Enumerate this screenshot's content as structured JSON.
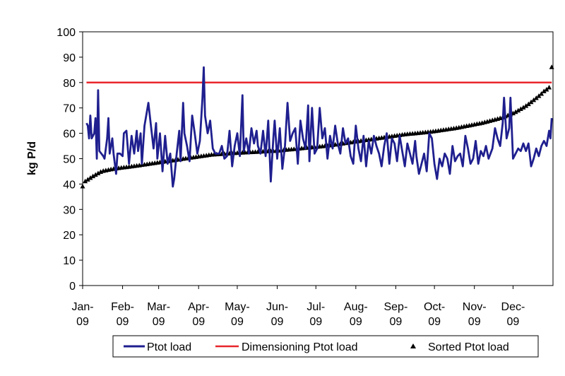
{
  "chart_data": {
    "type": "line",
    "title": "",
    "xlabel": "",
    "ylabel": "kg P/d",
    "ylim": [
      0,
      100
    ],
    "yticks": [
      0,
      10,
      20,
      30,
      40,
      50,
      60,
      70,
      80,
      90,
      100
    ],
    "x_days": [
      0,
      365
    ],
    "month_ticks": [
      {
        "day": 0,
        "line1": "Jan-",
        "line2": "09"
      },
      {
        "day": 31,
        "line1": "Feb-",
        "line2": "09"
      },
      {
        "day": 59,
        "line1": "Mar-",
        "line2": "09"
      },
      {
        "day": 90,
        "line1": "Apr-",
        "line2": "09"
      },
      {
        "day": 120,
        "line1": "May-",
        "line2": "09"
      },
      {
        "day": 151,
        "line1": "Jun-",
        "line2": "09"
      },
      {
        "day": 181,
        "line1": "Jul-",
        "line2": "09"
      },
      {
        "day": 212,
        "line1": "Aug-",
        "line2": "09"
      },
      {
        "day": 243,
        "line1": "Sep-",
        "line2": "09"
      },
      {
        "day": 273,
        "line1": "Oct-",
        "line2": "09"
      },
      {
        "day": 304,
        "line1": "Nov-",
        "line2": "09"
      },
      {
        "day": 334,
        "line1": "Dec-",
        "line2": "09"
      }
    ],
    "series": [
      {
        "name": "Ptot load",
        "kind": "line",
        "color": "#1f1f8f",
        "anchors": [
          [
            3,
            64
          ],
          [
            4,
            63
          ],
          [
            5,
            58
          ],
          [
            6,
            67
          ],
          [
            7,
            58
          ],
          [
            9,
            60
          ],
          [
            10,
            66
          ],
          [
            11,
            50
          ],
          [
            12,
            77
          ],
          [
            13,
            53
          ],
          [
            16,
            51
          ],
          [
            17,
            50
          ],
          [
            19,
            58
          ],
          [
            20,
            66
          ],
          [
            21,
            52
          ],
          [
            23,
            58
          ],
          [
            24,
            52
          ],
          [
            26,
            44
          ],
          [
            27,
            52
          ],
          [
            29,
            52
          ],
          [
            31,
            51
          ],
          [
            32,
            60
          ],
          [
            34,
            61
          ],
          [
            36,
            48
          ],
          [
            38,
            59
          ],
          [
            40,
            52
          ],
          [
            42,
            61
          ],
          [
            43,
            53
          ],
          [
            45,
            60
          ],
          [
            46,
            48
          ],
          [
            48,
            63
          ],
          [
            51,
            72
          ],
          [
            53,
            63
          ],
          [
            55,
            54
          ],
          [
            57,
            64
          ],
          [
            58,
            50
          ],
          [
            60,
            60
          ],
          [
            62,
            45
          ],
          [
            64,
            59
          ],
          [
            66,
            48
          ],
          [
            68,
            52
          ],
          [
            70,
            39
          ],
          [
            71,
            42
          ],
          [
            73,
            52
          ],
          [
            75,
            61
          ],
          [
            76,
            49
          ],
          [
            78,
            72
          ],
          [
            79,
            60
          ],
          [
            81,
            55
          ],
          [
            83,
            49
          ],
          [
            85,
            67
          ],
          [
            87,
            60
          ],
          [
            89,
            52
          ],
          [
            91,
            57
          ],
          [
            93,
            74
          ],
          [
            94,
            86
          ],
          [
            95,
            67
          ],
          [
            97,
            60
          ],
          [
            99,
            65
          ],
          [
            101,
            54
          ],
          [
            103,
            52
          ],
          [
            106,
            52
          ],
          [
            108,
            55
          ],
          [
            110,
            50
          ],
          [
            112,
            51
          ],
          [
            114,
            61
          ],
          [
            116,
            47
          ],
          [
            118,
            55
          ],
          [
            120,
            60
          ],
          [
            122,
            51
          ],
          [
            124,
            75
          ],
          [
            125,
            53
          ],
          [
            127,
            58
          ],
          [
            129,
            52
          ],
          [
            131,
            62
          ],
          [
            133,
            56
          ],
          [
            135,
            61
          ],
          [
            136,
            55
          ],
          [
            138,
            52
          ],
          [
            140,
            61
          ],
          [
            142,
            51
          ],
          [
            144,
            65
          ],
          [
            146,
            41
          ],
          [
            148,
            58
          ],
          [
            149,
            65
          ],
          [
            151,
            50
          ],
          [
            153,
            62
          ],
          [
            155,
            46
          ],
          [
            157,
            55
          ],
          [
            159,
            72
          ],
          [
            161,
            57
          ],
          [
            163,
            60
          ],
          [
            165,
            62
          ],
          [
            167,
            48
          ],
          [
            169,
            65
          ],
          [
            171,
            58
          ],
          [
            173,
            54
          ],
          [
            175,
            71
          ],
          [
            176,
            49
          ],
          [
            178,
            70
          ],
          [
            180,
            52
          ],
          [
            182,
            54
          ],
          [
            184,
            70
          ],
          [
            186,
            58
          ],
          [
            188,
            62
          ],
          [
            190,
            50
          ],
          [
            192,
            59
          ],
          [
            194,
            54
          ],
          [
            196,
            63
          ],
          [
            198,
            56
          ],
          [
            200,
            52
          ],
          [
            202,
            62
          ],
          [
            204,
            56
          ],
          [
            206,
            58
          ],
          [
            208,
            51
          ],
          [
            210,
            48
          ],
          [
            212,
            63
          ],
          [
            214,
            54
          ],
          [
            216,
            49
          ],
          [
            218,
            59
          ],
          [
            220,
            47
          ],
          [
            222,
            57
          ],
          [
            224,
            52
          ],
          [
            226,
            59
          ],
          [
            228,
            55
          ],
          [
            230,
            52
          ],
          [
            232,
            47
          ],
          [
            234,
            55
          ],
          [
            236,
            60
          ],
          [
            238,
            48
          ],
          [
            240,
            58
          ],
          [
            242,
            56
          ],
          [
            244,
            49
          ],
          [
            246,
            59
          ],
          [
            248,
            53
          ],
          [
            250,
            47
          ],
          [
            252,
            56
          ],
          [
            254,
            52
          ],
          [
            256,
            48
          ],
          [
            258,
            57
          ],
          [
            259,
            51
          ],
          [
            261,
            44
          ],
          [
            263,
            48
          ],
          [
            265,
            52
          ],
          [
            267,
            45
          ],
          [
            269,
            60
          ],
          [
            271,
            58
          ],
          [
            273,
            48
          ],
          [
            275,
            42
          ],
          [
            277,
            50
          ],
          [
            279,
            47
          ],
          [
            281,
            52
          ],
          [
            283,
            50
          ],
          [
            285,
            44
          ],
          [
            287,
            55
          ],
          [
            289,
            49
          ],
          [
            291,
            51
          ],
          [
            293,
            52
          ],
          [
            295,
            47
          ],
          [
            297,
            59
          ],
          [
            299,
            54
          ],
          [
            301,
            48
          ],
          [
            303,
            50
          ],
          [
            305,
            57
          ],
          [
            307,
            48
          ],
          [
            309,
            53
          ],
          [
            311,
            51
          ],
          [
            313,
            55
          ],
          [
            315,
            50
          ],
          [
            318,
            54
          ],
          [
            320,
            62
          ],
          [
            322,
            58
          ],
          [
            324,
            55
          ],
          [
            326,
            64
          ],
          [
            327,
            74
          ],
          [
            329,
            58
          ],
          [
            331,
            62
          ],
          [
            332,
            74
          ],
          [
            334,
            50
          ],
          [
            336,
            52
          ],
          [
            338,
            54
          ],
          [
            340,
            53
          ],
          [
            342,
            56
          ],
          [
            344,
            53
          ],
          [
            346,
            56
          ],
          [
            348,
            47
          ],
          [
            350,
            50
          ],
          [
            352,
            54
          ],
          [
            354,
            51
          ],
          [
            356,
            55
          ],
          [
            358,
            57
          ],
          [
            360,
            55
          ],
          [
            362,
            61
          ],
          [
            363,
            58
          ],
          [
            364,
            66
          ]
        ]
      },
      {
        "name": "Dimensioning Ptot load",
        "kind": "line",
        "color": "#e8262b",
        "x": [
          3,
          364
        ],
        "values": [
          80,
          80
        ]
      },
      {
        "name": "Sorted Ptot load",
        "kind": "scatter",
        "marker": "triangle",
        "color": "#000000",
        "anchors": [
          [
            0,
            39
          ],
          [
            2,
            41
          ],
          [
            8,
            43
          ],
          [
            15,
            45
          ],
          [
            25,
            46
          ],
          [
            40,
            47
          ],
          [
            60,
            48.5
          ],
          [
            80,
            50
          ],
          [
            100,
            51.5
          ],
          [
            120,
            52.2
          ],
          [
            150,
            53
          ],
          [
            170,
            54
          ],
          [
            190,
            55
          ],
          [
            210,
            56.5
          ],
          [
            230,
            58
          ],
          [
            250,
            59.5
          ],
          [
            270,
            60.5
          ],
          [
            290,
            62
          ],
          [
            310,
            64
          ],
          [
            325,
            66
          ],
          [
            335,
            68
          ],
          [
            340,
            69.5
          ],
          [
            345,
            71
          ],
          [
            350,
            73
          ],
          [
            355,
            75
          ],
          [
            358,
            76.5
          ],
          [
            361,
            77.5
          ],
          [
            362,
            78
          ],
          [
            364,
            86
          ]
        ],
        "count": 183
      }
    ],
    "legend": {
      "position": "bottom",
      "entries": [
        "Ptot load",
        "Dimensioning Ptot load",
        "Sorted Ptot load"
      ]
    },
    "grid": false
  }
}
